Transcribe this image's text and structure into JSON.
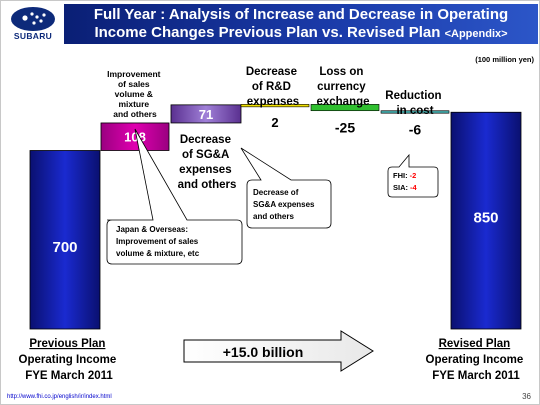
{
  "header": {
    "brand": "SUBARU",
    "title_line1": "Full Year : Analysis of Increase and Decrease in Operating",
    "title_line2": "Income Changes  Previous Plan vs. Revised Plan ",
    "title_appendix": "<Appendix>"
  },
  "chart_data": {
    "type": "waterfall",
    "unit": "(100 million yen)",
    "ylim": [
      0,
      1000
    ],
    "start": {
      "value": 700,
      "label_line1": "Previous Plan",
      "label_line2": "Operating Income",
      "label_line3": "FYE March 2011"
    },
    "steps": [
      {
        "value": 108,
        "label_lines": [
          "Improvement",
          "of sales",
          "volume &",
          "mixture",
          "and others"
        ],
        "color": "#e000b0"
      },
      {
        "value": 71,
        "label_lines": [
          "Decrease",
          "of SG&A",
          "expenses",
          "and others"
        ],
        "color": "#8a5cc0"
      },
      {
        "value": 2,
        "label_lines": [
          "Decrease",
          "of R&D",
          "expenses"
        ],
        "color": "#f0e000"
      },
      {
        "value": -25,
        "label_lines": [
          "Loss on",
          "currency",
          "exchange"
        ],
        "color": "#30c030"
      },
      {
        "value": -6,
        "label_lines": [
          "Reduction",
          "in cost"
        ],
        "color": "#40a0a0"
      }
    ],
    "end": {
      "value": 850,
      "label_line1": "Revised Plan",
      "label_line2": "Operating Income",
      "label_line3": "FYE March 2011"
    },
    "change_label": "+15.0 billion",
    "colors": {
      "total_bar": "#1a2ad0",
      "total_bar_dark": "#0a1070",
      "accent_red": "#ff0000"
    }
  },
  "callouts": {
    "japan": [
      "Japan & Overseas:",
      "Improvement of sales",
      "volume & mixture, etc"
    ],
    "sga": [
      "Decrease of",
      "SG&A expenses",
      "and others"
    ],
    "breakdown": [
      {
        "name": "FHI:",
        "value": "-2"
      },
      {
        "name": "SIA:",
        "value": "-4"
      }
    ]
  },
  "footer": {
    "url": "http://www.fhi.co.jp/english/ir/index.html",
    "page_number": "36"
  }
}
